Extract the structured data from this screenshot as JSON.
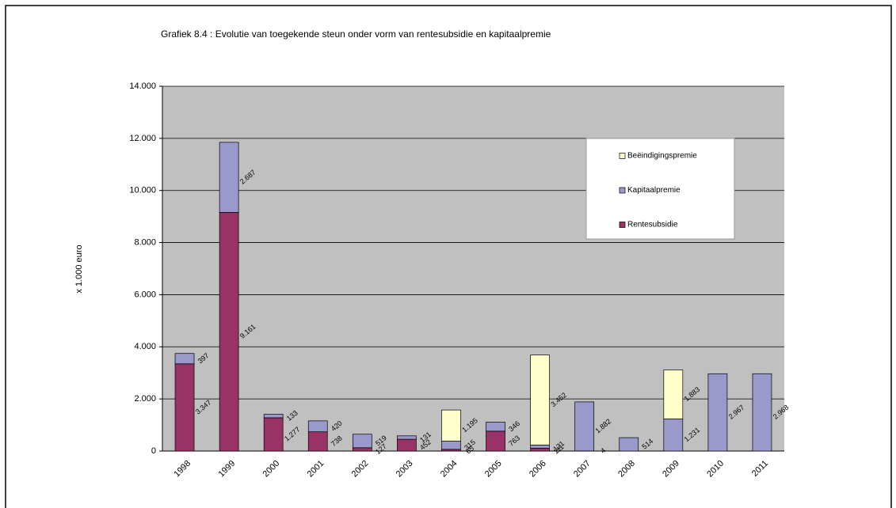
{
  "chart_data": {
    "type": "bar",
    "stacked": true,
    "title": "Grafiek 8.4 : Evolutie van toegekende steun onder vorm van rentesubsidie en kapitaalpremie",
    "y_label": "x 1.000 euro",
    "categories": [
      "1998",
      "1999",
      "2000",
      "2001",
      "2002",
      "2003",
      "2004",
      "2005",
      "2006",
      "2007",
      "2008",
      "2009",
      "2010",
      "2011"
    ],
    "series": [
      {
        "name": "Rentesubsidie",
        "color": "#993366",
        "values": [
          3347,
          9161,
          1277,
          738,
          127,
          452,
          65,
          763,
          111,
          4,
          null,
          null,
          null,
          null
        ],
        "value_labels": [
          "3.347",
          "9.161",
          "1.277",
          "738",
          "127",
          "452",
          "65",
          "763",
          "111",
          "4",
          null,
          null,
          null,
          null
        ]
      },
      {
        "name": "Kapitaalpremie",
        "color": "#9999cc",
        "values": [
          397,
          2687,
          133,
          420,
          519,
          131,
          315,
          346,
          121,
          1882,
          514,
          1231,
          2967,
          2968
        ],
        "value_labels": [
          "397",
          "2.687",
          "133",
          "420",
          "519",
          "131",
          "315",
          "346",
          "121",
          "1.882",
          "514",
          "1.231",
          "2.967",
          "2.968"
        ]
      },
      {
        "name": "Beëindigingspremie",
        "color": "#ffffcc",
        "values": [
          null,
          null,
          null,
          null,
          null,
          null,
          1195,
          null,
          3452,
          null,
          null,
          1883,
          null,
          null
        ],
        "value_labels": [
          null,
          null,
          null,
          null,
          null,
          null,
          "1.195",
          null,
          "3.452",
          null,
          null,
          "1.883",
          null,
          null
        ]
      }
    ],
    "ylim": [
      0,
      14000
    ],
    "yticks": [
      0,
      {
        "value": 2000,
        "label": "2.000"
      },
      {
        "value": 4000,
        "label": "4.000"
      },
      {
        "value": 6000,
        "label": "6.000"
      },
      {
        "value": 8000,
        "label": "8.000"
      },
      {
        "value": 10000,
        "label": "10.000"
      },
      {
        "value": 12000,
        "label": "12.000"
      },
      {
        "value": 14000,
        "label": "14.000"
      }
    ],
    "grid": true,
    "legend": "right"
  }
}
